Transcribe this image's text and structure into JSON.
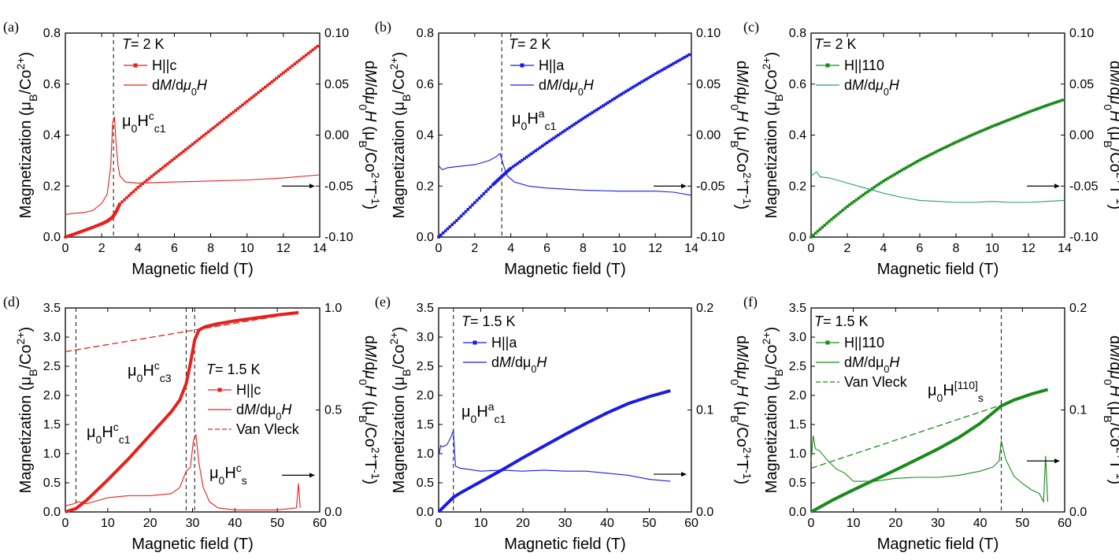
{
  "figure": {
    "panels_note": "six-panel magnetization figure",
    "xlabel": "Magnetic field (T)",
    "ylabel_left": "Magnetization (μB/Co2+)",
    "ylabel_right": "dM/dμ0H (μB/Co2+T-1)"
  },
  "chart_data": [
    {
      "id": "a",
      "type": "line",
      "panel_label": "(a)",
      "title": "",
      "xlabel": "Magnetic field (T)",
      "ylabel": "Magnetization (μB/Co2+)",
      "y2label": "dM/dμ0H (μB/Co2+T-1)",
      "xlim": [
        0,
        14
      ],
      "ylim": [
        0,
        0.8
      ],
      "y2lim": [
        -0.1,
        0.1
      ],
      "xticks": [
        "0",
        "2",
        "4",
        "6",
        "8",
        "10",
        "12",
        "14"
      ],
      "yticks": [
        "0.0",
        "0.2",
        "0.4",
        "0.6",
        "0.8"
      ],
      "y2ticks": [
        "-0.10",
        "-0.05",
        "0.00",
        "0.05",
        "0.10"
      ],
      "color": "#e8201c",
      "temperature": "T= 2 K",
      "legend": [
        {
          "label": "H||c",
          "style": "marker-line"
        },
        {
          "label": "dM/dμ0H",
          "style": "line"
        }
      ],
      "annotations": [
        {
          "text": "μ0Hcc1"
        }
      ],
      "vlines": [
        2.65
      ],
      "arrow": {
        "direction": "right",
        "y2": -0.05
      },
      "series": [
        {
          "name": "M (H||c)",
          "axis": "left",
          "style": "markers",
          "x": [
            0,
            0.5,
            1.0,
            1.5,
            2.0,
            2.3,
            2.6,
            2.8,
            3.0,
            4,
            5,
            6,
            7,
            8,
            9,
            10,
            11,
            12,
            13,
            14
          ],
          "y": [
            0,
            0.012,
            0.025,
            0.038,
            0.052,
            0.062,
            0.078,
            0.1,
            0.13,
            0.195,
            0.252,
            0.308,
            0.364,
            0.42,
            0.476,
            0.532,
            0.588,
            0.644,
            0.7,
            0.755
          ]
        },
        {
          "name": "dM/dμ0H",
          "axis": "right",
          "style": "line",
          "x": [
            0,
            0.3,
            1.0,
            1.5,
            2.0,
            2.3,
            2.5,
            2.6,
            2.7,
            2.8,
            2.9,
            3.0,
            3.3,
            4,
            6,
            8,
            10,
            12,
            14
          ],
          "y": [
            -0.078,
            -0.077,
            -0.076,
            -0.074,
            -0.067,
            -0.058,
            -0.03,
            0.012,
            0.018,
            -0.01,
            -0.03,
            -0.04,
            -0.046,
            -0.047,
            -0.046,
            -0.045,
            -0.044,
            -0.042,
            -0.039
          ]
        }
      ]
    },
    {
      "id": "b",
      "type": "line",
      "panel_label": "(b)",
      "title": "",
      "xlabel": "Magnetic field (T)",
      "ylabel": "Magnetization (μB/Co2+)",
      "y2label": "dM/dμ0H (μB/Co2+T-1)",
      "xlim": [
        0,
        14
      ],
      "ylim": [
        0,
        0.8
      ],
      "y2lim": [
        -0.1,
        0.1
      ],
      "xticks": [
        "0",
        "2",
        "4",
        "6",
        "8",
        "10",
        "12",
        "14"
      ],
      "yticks": [
        "0.0",
        "0.2",
        "0.4",
        "0.6",
        "0.8"
      ],
      "y2ticks": [
        "-0.10",
        "-0.05",
        "0.00",
        "0.05",
        "0.10"
      ],
      "color": "#1a1ae6",
      "temperature": "T= 2 K",
      "legend": [
        {
          "label": "H||a",
          "style": "marker-line"
        },
        {
          "label": "dM/dμ0H",
          "style": "line"
        }
      ],
      "annotations": [
        {
          "text": "μ0Hac1"
        }
      ],
      "vlines": [
        3.5
      ],
      "arrow": {
        "direction": "right",
        "y2": -0.05
      },
      "series": [
        {
          "name": "M (H||a)",
          "axis": "left",
          "style": "markers",
          "x": [
            0,
            1,
            2,
            3,
            3.5,
            4,
            5,
            6,
            7,
            8,
            9,
            10,
            11,
            12,
            13,
            14
          ],
          "y": [
            0,
            0.065,
            0.135,
            0.205,
            0.238,
            0.27,
            0.32,
            0.37,
            0.418,
            0.465,
            0.51,
            0.555,
            0.598,
            0.64,
            0.68,
            0.72
          ]
        },
        {
          "name": "dM/dμ0H",
          "axis": "right",
          "style": "line",
          "x": [
            0,
            0.2,
            0.5,
            1,
            2,
            2.8,
            3.2,
            3.4,
            3.6,
            3.8,
            4.2,
            5,
            6,
            8,
            10,
            12,
            13,
            14
          ],
          "y": [
            -0.03,
            -0.034,
            -0.032,
            -0.031,
            -0.029,
            -0.025,
            -0.021,
            -0.018,
            -0.03,
            -0.04,
            -0.046,
            -0.05,
            -0.052,
            -0.054,
            -0.055,
            -0.055,
            -0.056,
            -0.059
          ]
        }
      ]
    },
    {
      "id": "c",
      "type": "line",
      "panel_label": "(c)",
      "title": "",
      "xlabel": "Magnetic field (T)",
      "ylabel": "Magnetization (μB/Co2+)",
      "y2label": "dM/dμ0H (μB/Co2+T-1)",
      "xlim": [
        0,
        14
      ],
      "ylim": [
        0,
        0.8
      ],
      "y2lim": [
        -0.1,
        0.1
      ],
      "xticks": [
        "0",
        "2",
        "4",
        "6",
        "8",
        "10",
        "12",
        "14"
      ],
      "yticks": [
        "0.0",
        "0.2",
        "0.4",
        "0.6",
        "0.8"
      ],
      "y2ticks": [
        "-0.10",
        "-0.05",
        "0.00",
        "0.05",
        "0.10"
      ],
      "color": "#1a8a1a",
      "line_color": "#2e9a7a",
      "temperature": "T= 2 K",
      "legend": [
        {
          "label": "H||110",
          "style": "marker-line"
        },
        {
          "label": "dM/dμ0H",
          "style": "line"
        }
      ],
      "annotations": [],
      "vlines": [],
      "arrow": {
        "direction": "right",
        "y2": -0.05
      },
      "series": [
        {
          "name": "M (H||110)",
          "axis": "left",
          "style": "markers",
          "x": [
            0,
            1,
            2,
            3,
            4,
            5,
            6,
            7,
            8,
            9,
            10,
            11,
            12,
            13,
            14
          ],
          "y": [
            0,
            0.062,
            0.12,
            0.172,
            0.22,
            0.262,
            0.302,
            0.338,
            0.372,
            0.404,
            0.434,
            0.462,
            0.49,
            0.516,
            0.54
          ]
        },
        {
          "name": "dM/dμ0H",
          "axis": "right",
          "style": "line",
          "x": [
            0,
            0.3,
            0.5,
            1,
            2,
            3,
            4,
            5,
            6,
            7,
            8,
            9,
            10,
            11,
            12,
            13,
            14
          ],
          "y": [
            -0.04,
            -0.036,
            -0.041,
            -0.042,
            -0.047,
            -0.052,
            -0.057,
            -0.061,
            -0.064,
            -0.065,
            -0.066,
            -0.066,
            -0.065,
            -0.066,
            -0.066,
            -0.065,
            -0.064
          ]
        }
      ]
    },
    {
      "id": "d",
      "type": "line",
      "panel_label": "(d)",
      "title": "",
      "xlabel": "Magnetic field (T)",
      "ylabel": "Magnetization (μB/Co2+)",
      "y2label": "dM/dμ0H (μB/Co2+T-1)",
      "xlim": [
        0,
        60
      ],
      "ylim": [
        0,
        3.5
      ],
      "y2lim": [
        0.0,
        1.0
      ],
      "xticks": [
        "0",
        "10",
        "20",
        "30",
        "40",
        "50",
        "60"
      ],
      "yticks": [
        "0.0",
        "0.5",
        "1.0",
        "1.5",
        "2.0",
        "2.5",
        "3.0",
        "3.5"
      ],
      "y2ticks": [
        "0.0",
        "0.5",
        "1.0"
      ],
      "color": "#e8201c",
      "temperature": "T= 1.5 K",
      "legend": [
        {
          "label": "H||c",
          "style": "marker-line"
        },
        {
          "label": "dM/dμ0H",
          "style": "line"
        },
        {
          "label": "Van Vleck",
          "style": "dashed"
        }
      ],
      "annotations": [
        {
          "text": "μ0Hcc3"
        },
        {
          "text": "μ0Hcc1"
        },
        {
          "text": "μ0Hcs"
        }
      ],
      "vlines": [
        2.5,
        28.5,
        30.5
      ],
      "arrow": {
        "direction": "right",
        "y2": 0.18
      },
      "van_vleck": {
        "x": [
          0,
          55
        ],
        "y": [
          2.75,
          3.42
        ]
      },
      "series": [
        {
          "name": "M (H||c)",
          "axis": "left",
          "style": "markers",
          "x": [
            0,
            2.5,
            5,
            10,
            15,
            20,
            25,
            27,
            28.5,
            29.5,
            30.5,
            31.5,
            33,
            36,
            40,
            45,
            50,
            55
          ],
          "y": [
            0,
            0.06,
            0.2,
            0.55,
            0.92,
            1.32,
            1.72,
            1.92,
            2.2,
            2.55,
            2.95,
            3.12,
            3.18,
            3.23,
            3.28,
            3.33,
            3.38,
            3.42
          ]
        },
        {
          "name": "dM/dμ0H",
          "axis": "right",
          "style": "line",
          "x": [
            0,
            2,
            3,
            5,
            10,
            15,
            20,
            25,
            27,
            28.5,
            29.5,
            30.2,
            30.8,
            31.5,
            32.5,
            34,
            36,
            40,
            45,
            50,
            54.5,
            55,
            55.4
          ],
          "y": [
            0.03,
            0.04,
            0.05,
            0.04,
            0.07,
            0.08,
            0.08,
            0.09,
            0.12,
            0.2,
            0.22,
            0.35,
            0.38,
            0.24,
            0.12,
            0.05,
            0.02,
            0.01,
            0.01,
            0.01,
            0.02,
            0.14,
            0.02
          ]
        }
      ]
    },
    {
      "id": "e",
      "type": "line",
      "panel_label": "(e)",
      "title": "",
      "xlabel": "Magnetic field (T)",
      "ylabel": "Magnetization (μB/Co2+)",
      "y2label": "dM/dμ0H (μB/Co2+T-1)",
      "xlim": [
        0,
        60
      ],
      "ylim": [
        0,
        3.5
      ],
      "y2lim": [
        0.0,
        0.2
      ],
      "xticks": [
        "0",
        "10",
        "20",
        "30",
        "40",
        "50",
        "60"
      ],
      "yticks": [
        "0.0",
        "0.5",
        "1.0",
        "1.5",
        "2.0",
        "2.5",
        "3.0",
        "3.5"
      ],
      "y2ticks": [
        "0.0",
        "0.1",
        "0.2"
      ],
      "color": "#1a1ae6",
      "temperature": "T= 1.5 K",
      "legend": [
        {
          "label": "H||a",
          "style": "marker-line"
        },
        {
          "label": "dM/dμ0H",
          "style": "line"
        }
      ],
      "annotations": [
        {
          "text": "μ0Hac1"
        }
      ],
      "vlines": [
        3.5
      ],
      "arrow": {
        "direction": "right",
        "y2": 0.037
      },
      "series": [
        {
          "name": "M (H||a)",
          "axis": "left",
          "style": "markers",
          "x": [
            0,
            3.5,
            5,
            10,
            15,
            20,
            25,
            30,
            35,
            40,
            45,
            50,
            55
          ],
          "y": [
            0,
            0.25,
            0.32,
            0.52,
            0.72,
            0.93,
            1.13,
            1.33,
            1.52,
            1.7,
            1.86,
            1.98,
            2.08
          ]
        },
        {
          "name": "dM/dμ0H",
          "axis": "right",
          "style": "line",
          "x": [
            0,
            0.5,
            1,
            2,
            3,
            3.5,
            4,
            5,
            10,
            15,
            20,
            25,
            30,
            35,
            40,
            45,
            50,
            55
          ],
          "y": [
            0.055,
            0.065,
            0.064,
            0.066,
            0.074,
            0.08,
            0.045,
            0.043,
            0.04,
            0.041,
            0.04,
            0.041,
            0.04,
            0.04,
            0.038,
            0.036,
            0.032,
            0.03
          ]
        }
      ]
    },
    {
      "id": "f",
      "type": "line",
      "panel_label": "(f)",
      "title": "",
      "xlabel": "Magnetic field (T)",
      "ylabel": "Magnetization (μB/Co2+)",
      "y2label": "dM/dμ0H (μB/Co2+T-1)",
      "xlim": [
        0,
        60
      ],
      "ylim": [
        0,
        3.5
      ],
      "y2lim": [
        0.0,
        0.2
      ],
      "xticks": [
        "0",
        "10",
        "20",
        "30",
        "40",
        "50",
        "60"
      ],
      "yticks": [
        "0.0",
        "0.5",
        "1.0",
        "1.5",
        "2.0",
        "2.5",
        "3.0",
        "3.5"
      ],
      "y2ticks": [
        "0.0",
        "0.1",
        "0.2"
      ],
      "color": "#1a8a1a",
      "temperature": "T= 1.5 K",
      "legend": [
        {
          "label": "H||110",
          "style": "marker-line"
        },
        {
          "label": "dM/dμ0H",
          "style": "line"
        },
        {
          "label": "Van Vleck",
          "style": "dashed"
        }
      ],
      "annotations": [
        {
          "text": "μ0H[110]s"
        }
      ],
      "vlines": [
        45
      ],
      "arrow": {
        "direction": "right",
        "y2": 0.05
      },
      "van_vleck": {
        "x": [
          0,
          56
        ],
        "y": [
          0.75,
          2.1
        ]
      },
      "series": [
        {
          "name": "M (H||110)",
          "axis": "left",
          "style": "markers",
          "x": [
            0,
            5,
            10,
            15,
            20,
            25,
            30,
            35,
            40,
            45,
            48,
            52,
            56
          ],
          "y": [
            0,
            0.2,
            0.38,
            0.55,
            0.72,
            0.9,
            1.08,
            1.28,
            1.52,
            1.82,
            1.92,
            2.02,
            2.1
          ]
        },
        {
          "name": "dM/dμ0H",
          "axis": "right",
          "style": "line",
          "x": [
            0,
            0.5,
            1,
            2,
            4,
            6,
            8,
            10,
            15,
            20,
            25,
            30,
            35,
            40,
            43,
            44.5,
            45,
            46,
            48,
            50,
            52,
            54,
            55,
            55.5,
            56
          ],
          "y": [
            0.05,
            0.075,
            0.062,
            0.06,
            0.05,
            0.042,
            0.038,
            0.03,
            0.03,
            0.033,
            0.034,
            0.034,
            0.036,
            0.04,
            0.044,
            0.05,
            0.07,
            0.052,
            0.035,
            0.028,
            0.022,
            0.018,
            0.01,
            0.055,
            0.01
          ]
        }
      ]
    }
  ]
}
